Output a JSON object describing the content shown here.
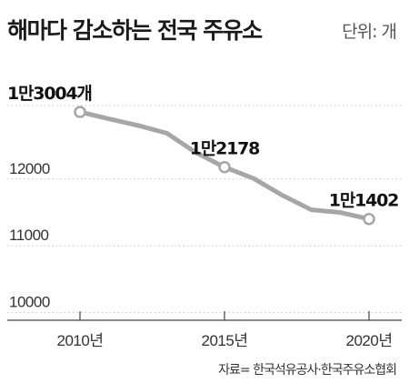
{
  "header": {
    "title": "해마다 감소하는 전국 주유소",
    "unit": "단위: 개"
  },
  "footer": {
    "source": "자료= 한국석유공사·한국주유소협회"
  },
  "colors": {
    "line": "#a6a6a6",
    "grid": "#c8c8c8",
    "marker_fill": "#ffffff"
  },
  "chart_data": {
    "type": "line",
    "title": "해마다 감소하는 전국 주유소",
    "ylabel": "단위: 개",
    "grid": "horizontal-dotted",
    "ylim": [
      9900,
      13400
    ],
    "xlim": [
      2010,
      2020
    ],
    "y_ticks": [
      {
        "value": 10000,
        "label": "10000"
      },
      {
        "value": 11000,
        "label": "11000"
      },
      {
        "value": 12000,
        "label": "12000"
      }
    ],
    "x_ticks": [
      {
        "value": 2010,
        "label": "2010년"
      },
      {
        "value": 2015,
        "label": "2015년"
      },
      {
        "value": 2020,
        "label": "2020년"
      }
    ],
    "series": [
      {
        "x": [
          2010,
          2011,
          2012,
          2013,
          2014,
          2015,
          2016,
          2017,
          2018,
          2019,
          2020
        ],
        "values": [
          13004,
          12901,
          12803,
          12687,
          12398,
          12178,
          12010,
          11757,
          11540,
          11500,
          11402
        ]
      }
    ],
    "data_labels": [
      {
        "x": 2010,
        "y": 13004,
        "text": "1만3004개"
      },
      {
        "x": 2015,
        "y": 12178,
        "text": "1만2178"
      },
      {
        "x": 2020,
        "y": 11402,
        "text": "1만1402"
      }
    ]
  }
}
